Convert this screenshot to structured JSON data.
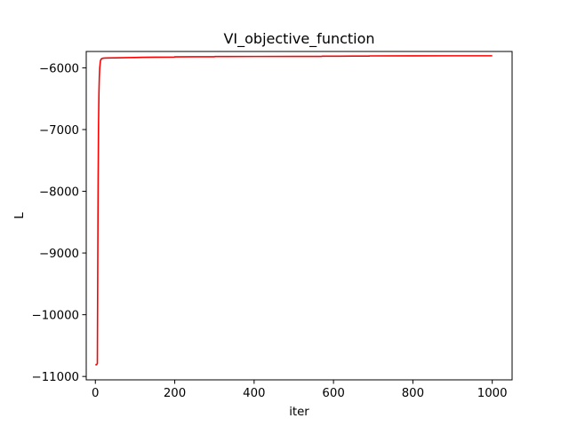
{
  "chart_data": {
    "type": "line",
    "title": "VI_objective_function",
    "xlabel": "iter",
    "ylabel": "L",
    "xlim": [
      -23,
      1050
    ],
    "ylim": [
      -11055,
      -5735
    ],
    "xticks": [
      0,
      200,
      400,
      600,
      800,
      1000
    ],
    "yticks": [
      -11000,
      -10000,
      -9000,
      -8000,
      -7000,
      -6000
    ],
    "xtick_labels": [
      "0",
      "200",
      "400",
      "600",
      "800",
      "1000"
    ],
    "ytick_labels": [
      "−11000",
      "−10000",
      "−9000",
      "−8000",
      "−7000",
      "−6000"
    ],
    "grid": false,
    "legend": "none",
    "series": [
      {
        "color": "#ff0000",
        "x": [
          0,
          3,
          5,
          6,
          7,
          8,
          9,
          10,
          11,
          12,
          13,
          15,
          18,
          22,
          30,
          50,
          80,
          100,
          120,
          150,
          199,
          200,
          250,
          300,
          301,
          400,
          500,
          570,
          571,
          650,
          690,
          691,
          800,
          900,
          1000
        ],
        "y": [
          -10810,
          -10810,
          -10790,
          -9200,
          -7800,
          -6900,
          -6400,
          -6150,
          -6000,
          -5930,
          -5880,
          -5855,
          -5845,
          -5842,
          -5840,
          -5838,
          -5835,
          -5833,
          -5830,
          -5828,
          -5826,
          -5822,
          -5821,
          -5820,
          -5817,
          -5816,
          -5815,
          -5815,
          -5812,
          -5810,
          -5810,
          -5807,
          -5806,
          -5805,
          -5805
        ]
      }
    ]
  }
}
